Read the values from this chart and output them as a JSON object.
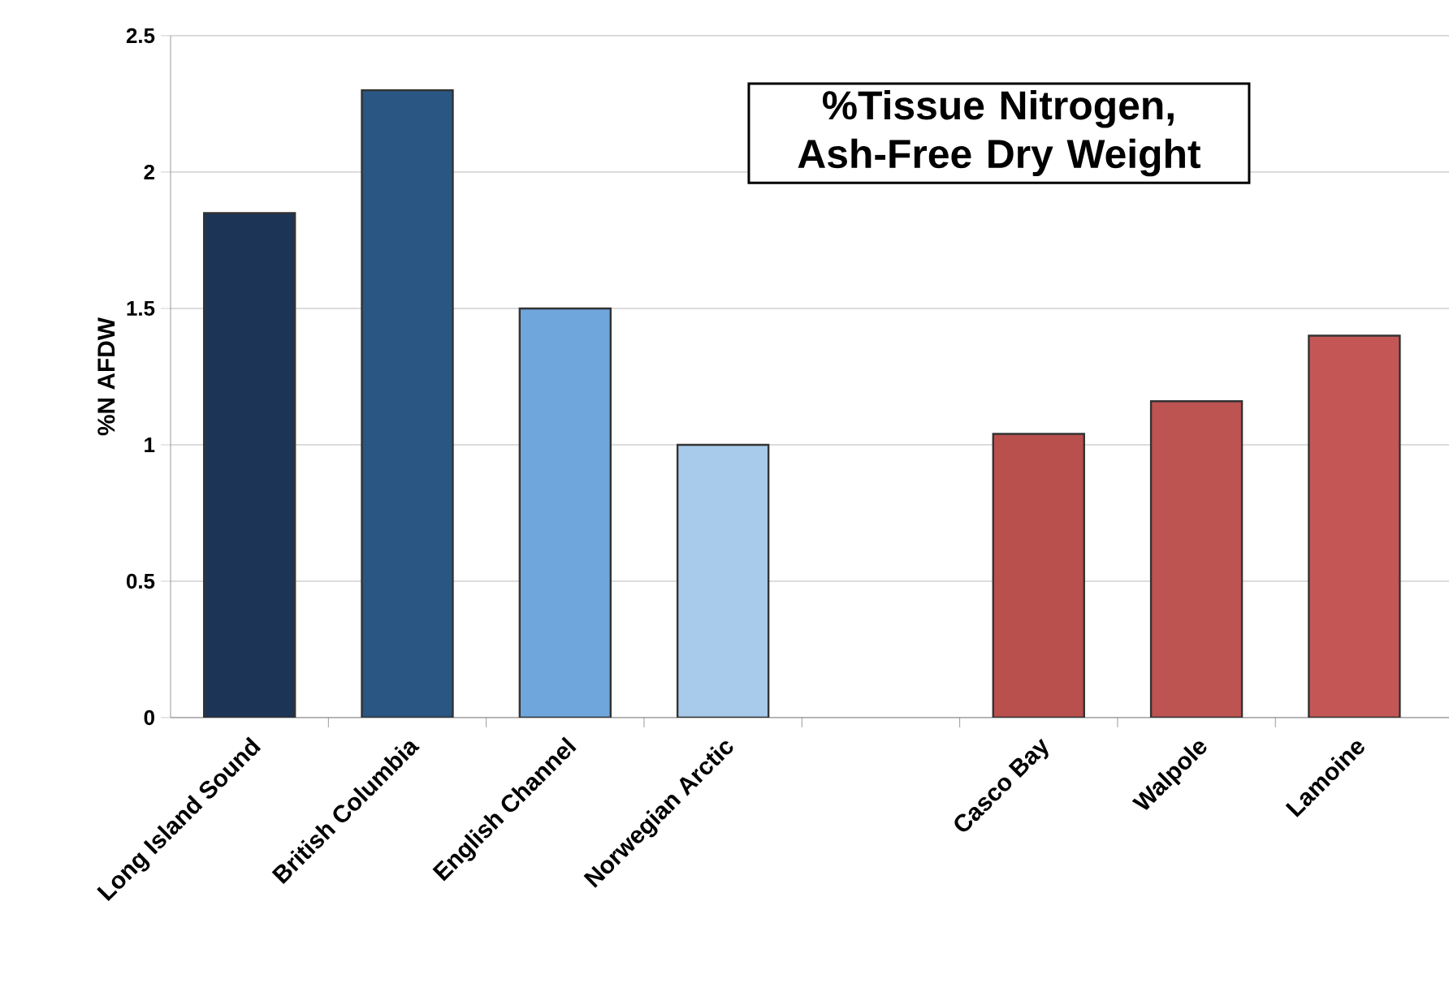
{
  "chart_data": {
    "type": "bar",
    "title": "%Tissue Nitrogen, Ash-Free Dry Weight",
    "ylabel": "%N AFDW",
    "categories": [
      "Long Island Sound",
      "British Columbia",
      "English Channel",
      "Norwegian Arctic",
      null,
      "Casco Bay",
      "Walpole",
      "Lamoine"
    ],
    "values": [
      1.85,
      2.3,
      1.5,
      1.0,
      null,
      1.04,
      1.16,
      1.4
    ],
    "colors": [
      "#1c3557",
      "#2a5683",
      "#6fa6dc",
      "#a9cbeb",
      "#ffffff",
      "#b9504e",
      "#bd5452",
      "#c45755"
    ],
    "ylim": [
      0,
      2.5
    ],
    "yticks": [
      0,
      0.5,
      1,
      1.5,
      2,
      2.5
    ],
    "grid": "y"
  }
}
